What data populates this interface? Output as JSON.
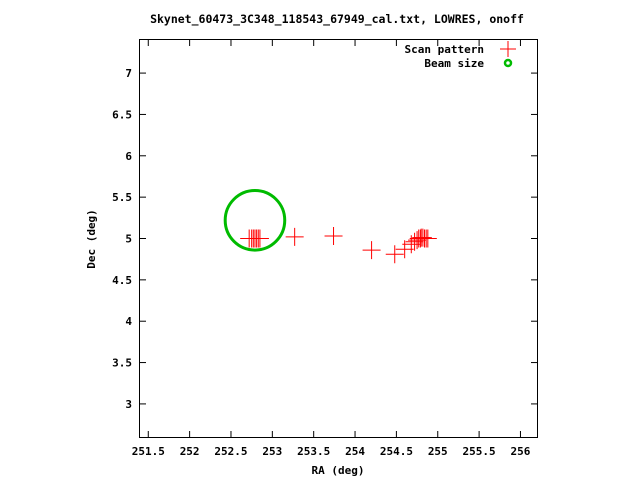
{
  "chart_data": {
    "type": "scatter",
    "title": "Skynet_60473_3C348_118543_67949_cal.txt, LOWRES, onoff",
    "xlabel": "RA (deg)",
    "ylabel": "Dec (deg)",
    "xlim": [
      251.4,
      256.2
    ],
    "ylim": [
      2.6,
      7.4
    ],
    "xticks": [
      251.5,
      252,
      252.5,
      253,
      253.5,
      254,
      254.5,
      255,
      255.5,
      256
    ],
    "xtick_labels": [
      "251.5",
      "252",
      "252.5",
      "253",
      "253.5",
      "254",
      "254.5",
      "255",
      "255.5",
      "256"
    ],
    "yticks": [
      3,
      3.5,
      4,
      4.5,
      5,
      5.5,
      6,
      6.5,
      7
    ],
    "ytick_labels": [
      "3",
      "3.5",
      "4",
      "4.5",
      "5",
      "5.5",
      "6",
      "6.5",
      "7"
    ],
    "grid": false,
    "legend_position": "top-right",
    "series": [
      {
        "name": "Scan pattern",
        "marker": "plus",
        "color": "#ff0000",
        "x": [
          252.72,
          252.75,
          252.77,
          252.79,
          252.81,
          252.83,
          252.85,
          253.27,
          253.74,
          254.2,
          254.48,
          254.6,
          254.68,
          254.72,
          254.75,
          254.77,
          254.79,
          254.8,
          254.82,
          254.84,
          254.86,
          254.88
        ],
        "y": [
          5.0,
          5.0,
          5.0,
          5.0,
          5.0,
          5.0,
          5.0,
          5.02,
          5.03,
          4.86,
          4.81,
          4.87,
          4.93,
          4.96,
          4.98,
          5.0,
          5.0,
          5.01,
          5.01,
          5.0,
          5.0,
          5.0
        ]
      },
      {
        "name": "Beam size",
        "marker": "circle",
        "color": "#00bb00",
        "center": [
          252.79,
          5.22
        ],
        "radius_deg": 0.36
      }
    ]
  }
}
